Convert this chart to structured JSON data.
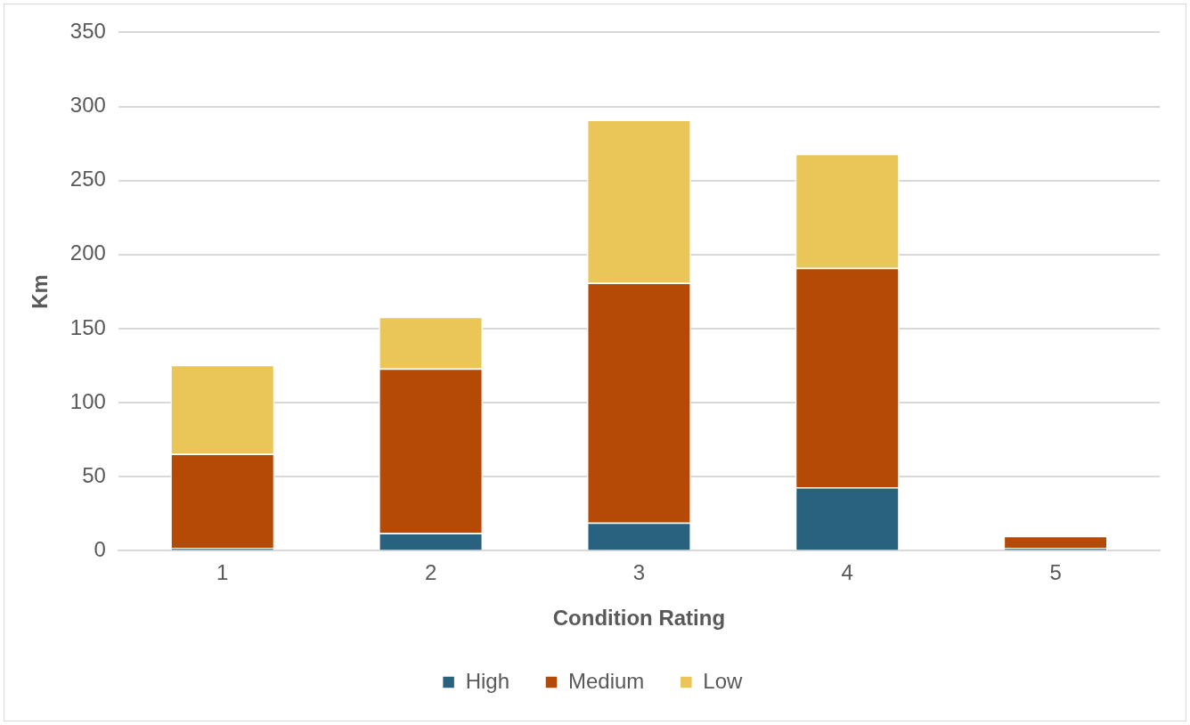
{
  "chart_data": {
    "type": "bar",
    "stacked": true,
    "xlabel": "Condition Rating",
    "ylabel": "Km",
    "categories": [
      "1",
      "2",
      "3",
      "4",
      "5"
    ],
    "series": [
      {
        "name": "High",
        "color": "#28627f",
        "values": [
          2,
          12,
          19,
          43,
          2
        ]
      },
      {
        "name": "Medium",
        "color": "#b54a07",
        "values": [
          63.5,
          111,
          162,
          148,
          8
        ]
      },
      {
        "name": "Low",
        "color": "#e9c657",
        "values": [
          60,
          35,
          110,
          77,
          0
        ]
      }
    ],
    "ylim": [
      0,
      350
    ],
    "yticks": [
      0,
      50,
      100,
      150,
      200,
      250,
      300,
      350
    ],
    "grid": "y",
    "legend": "bottom"
  }
}
